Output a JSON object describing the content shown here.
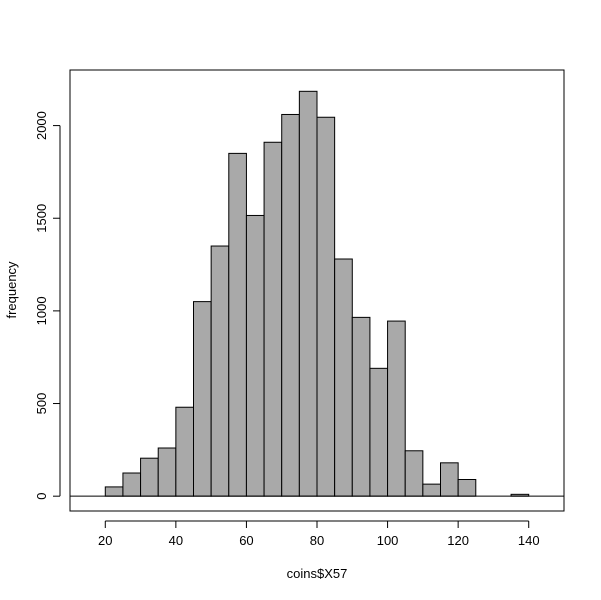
{
  "chart_data": {
    "type": "bar",
    "histogram": true,
    "bin_width": 5,
    "bin_edges": [
      20,
      25,
      30,
      35,
      40,
      45,
      50,
      55,
      60,
      65,
      70,
      75,
      80,
      85,
      90,
      95,
      100,
      105,
      110,
      115,
      120,
      125,
      130,
      135,
      140
    ],
    "values": [
      50,
      125,
      205,
      260,
      480,
      1050,
      1350,
      1850,
      1515,
      1910,
      2060,
      2185,
      2045,
      1280,
      965,
      690,
      945,
      245,
      65,
      180,
      90,
      0,
      0,
      10
    ],
    "xlabel": "coins$X57",
    "ylabel": "frequency",
    "xlim": [
      10,
      150
    ],
    "ylim": [
      -80,
      2300
    ],
    "xticks": [
      20,
      40,
      60,
      80,
      100,
      120,
      140
    ],
    "yticks": [
      0,
      500,
      1000,
      1500,
      2000
    ],
    "colors": {
      "bar_fill": "#a9a9a9",
      "bar_stroke": "#000000"
    },
    "grid": false
  }
}
